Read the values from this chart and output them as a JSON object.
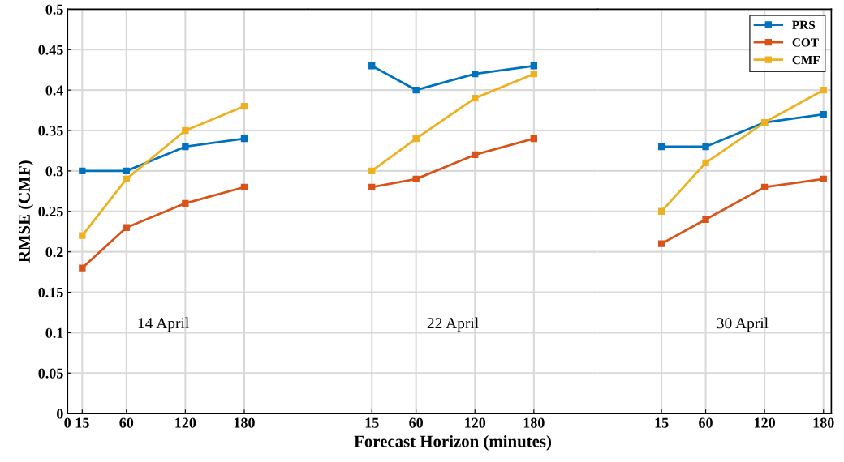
{
  "chart_data": [
    {
      "type": "line",
      "ylabel": "RMSE (CMF)",
      "x": [
        15,
        60,
        120,
        180
      ],
      "series": [
        {
          "color": "#0072bd",
          "values": [
            0.3,
            0.3,
            0.33,
            0.34
          ]
        },
        {
          "color": "#d95319",
          "values": [
            0.18,
            0.23,
            0.26,
            0.28
          ]
        },
        {
          "color": "#edb120",
          "values": [
            0.22,
            0.29,
            0.35,
            0.38
          ]
        }
      ],
      "xlim": [
        0,
        245
      ],
      "xticks": [
        0,
        15,
        60,
        120,
        180
      ],
      "ylim": [
        0,
        0.5
      ],
      "yticks": [
        0,
        0.05,
        0.1,
        0.15,
        0.2,
        0.25,
        0.3,
        0.35,
        0.4,
        0.45,
        0.5
      ],
      "annotations": [
        "14 April"
      ],
      "grid": true,
      "marker": "square",
      "line_style": "solid"
    },
    {
      "type": "line",
      "xlabel": "Forecast Horizon (minutes)",
      "x": [
        15,
        60,
        120,
        180
      ],
      "series": [
        {
          "color": "#0072bd",
          "values": [
            0.43,
            0.4,
            0.42,
            0.43
          ]
        },
        {
          "color": "#d95319",
          "values": [
            0.28,
            0.29,
            0.32,
            0.34
          ]
        },
        {
          "color": "#edb120",
          "values": [
            0.3,
            0.34,
            0.39,
            0.42
          ]
        }
      ],
      "xlim": [
        -50,
        245
      ],
      "xticks": [
        15,
        60,
        120,
        180
      ],
      "ylim": [
        0,
        0.5
      ],
      "tick_labels": "x",
      "annotations": [
        "22 April"
      ],
      "grid": true,
      "marker": "square",
      "line_style": "solid"
    },
    {
      "type": "line",
      "x": [
        15,
        60,
        120,
        180
      ],
      "series": [
        {
          "name": "PRS",
          "color": "#0072bd",
          "values": [
            0.33,
            0.33,
            0.36,
            0.37
          ]
        },
        {
          "name": "COT",
          "color": "#d95319",
          "values": [
            0.21,
            0.24,
            0.28,
            0.29
          ]
        },
        {
          "name": "CMF",
          "color": "#edb120",
          "values": [
            0.25,
            0.31,
            0.36,
            0.4
          ]
        }
      ],
      "xlim": [
        -50,
        188
      ],
      "xticks": [
        15,
        60,
        120,
        180
      ],
      "ylim": [
        0,
        0.5
      ],
      "tick_labels": "x",
      "annotations": [
        "30 April"
      ],
      "grid": true,
      "legend": "top right",
      "marker": "square",
      "line_style": "solid"
    }
  ]
}
